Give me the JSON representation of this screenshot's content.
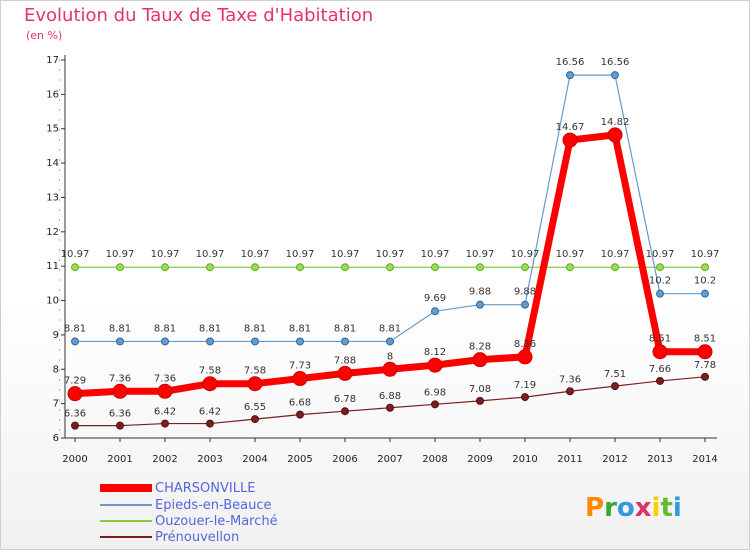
{
  "chart_data": {
    "type": "line",
    "title": "Evolution du Taux de Taxe d'Habitation",
    "subtitle": "(en %)",
    "x": [
      "2000",
      "2001",
      "2002",
      "2003",
      "2004",
      "2005",
      "2006",
      "2007",
      "2008",
      "2009",
      "2010",
      "2011",
      "2012",
      "2013",
      "2014"
    ],
    "ylim": [
      6,
      17
    ],
    "yticks": [
      6,
      7,
      8,
      9,
      10,
      11,
      12,
      13,
      14,
      15,
      16,
      17
    ],
    "grid": false,
    "legend_position": "bottom-left",
    "series": [
      {
        "name": "CHARSONVILLE",
        "color": "#ff0000",
        "values": [
          7.29,
          7.36,
          7.36,
          7.58,
          7.58,
          7.73,
          7.88,
          8,
          8.12,
          8.28,
          8.36,
          14.67,
          14.82,
          8.51,
          8.51
        ],
        "labels": [
          "7.29",
          "7.36",
          "7.36",
          "7.58",
          "7.58",
          "7.73",
          "7.88",
          "8",
          "8.12",
          "8.28",
          "8.36",
          "14.67",
          "14.82",
          "8.51",
          "8.51"
        ]
      },
      {
        "name": "Epieds-en-Beauce",
        "color": "#6699cc",
        "values": [
          8.81,
          8.81,
          8.81,
          8.81,
          8.81,
          8.81,
          8.81,
          8.81,
          9.69,
          9.88,
          9.88,
          16.56,
          16.56,
          10.2,
          10.2
        ],
        "labels": [
          "8.81",
          "8.81",
          "8.81",
          "8.81",
          "8.81",
          "8.81",
          "8.81",
          "8.81",
          "9.69",
          "9.88",
          "9.88",
          "16.56",
          "16.56",
          "10.2",
          "10.2"
        ]
      },
      {
        "name": "Ouzouer-le-Marché",
        "color": "#88cc44",
        "values": [
          10.97,
          10.97,
          10.97,
          10.97,
          10.97,
          10.97,
          10.97,
          10.97,
          10.97,
          10.97,
          10.97,
          10.97,
          10.97,
          10.97,
          10.97
        ],
        "labels": [
          "10.97",
          "10.97",
          "10.97",
          "10.97",
          "10.97",
          "10.97",
          "10.97",
          "10.97",
          "10.97",
          "10.97",
          "10.97",
          "10.97",
          "10.97",
          "10.97",
          "10.97"
        ]
      },
      {
        "name": "Prénouvellon",
        "color": "#7a1f1f",
        "values": [
          6.36,
          6.36,
          6.42,
          6.42,
          6.55,
          6.68,
          6.78,
          6.88,
          6.98,
          7.08,
          7.19,
          7.36,
          7.51,
          7.66,
          7.78
        ],
        "labels": [
          "6.36",
          "6.36",
          "6.42",
          "6.42",
          "6.55",
          "6.68",
          "6.78",
          "6.88",
          "6.98",
          "7.08",
          "7.19",
          "7.36",
          "7.51",
          "7.66",
          "7.78"
        ]
      }
    ]
  },
  "logo": {
    "text": "Proxiti",
    "colors": [
      "#ff8800",
      "#33aa33",
      "#3399dd",
      "#dd3366",
      "#ffcc00",
      "#66bb33",
      "#3399dd"
    ]
  }
}
